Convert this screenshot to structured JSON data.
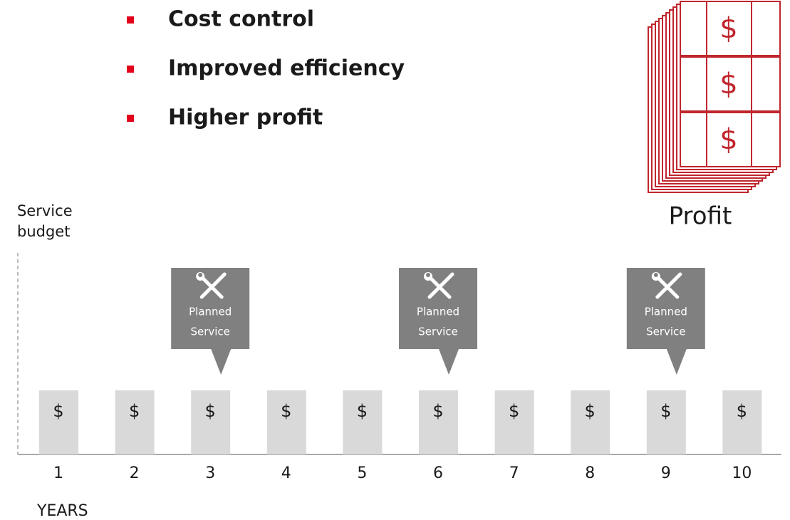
{
  "bullets": [
    "Cost control",
    "Improved efficiency",
    "Higher profit"
  ],
  "profit": {
    "notes": [
      "$",
      "$",
      "$"
    ],
    "label": "Profit"
  },
  "axis": {
    "y_label": [
      "Service",
      "budget"
    ],
    "x_label": "YEARS"
  },
  "years": [
    {
      "label": "1",
      "cost": "$"
    },
    {
      "label": "2",
      "cost": "$"
    },
    {
      "label": "3",
      "cost": "$",
      "callout": [
        "Planned",
        "Service"
      ]
    },
    {
      "label": "4",
      "cost": "$"
    },
    {
      "label": "5",
      "cost": "$"
    },
    {
      "label": "6",
      "cost": "$",
      "callout": [
        "Planned",
        "Service"
      ]
    },
    {
      "label": "7",
      "cost": "$"
    },
    {
      "label": "8",
      "cost": "$"
    },
    {
      "label": "9",
      "cost": "$",
      "callout": [
        "Planned",
        "Service"
      ]
    },
    {
      "label": "10",
      "cost": "$"
    }
  ]
}
